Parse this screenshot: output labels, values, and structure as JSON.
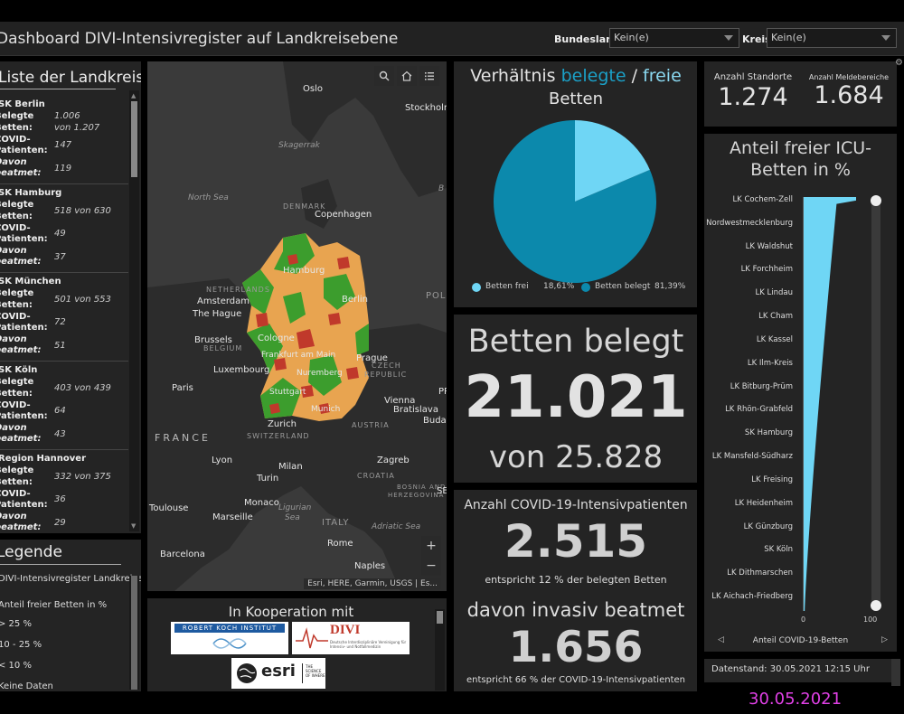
{
  "header": {
    "title": "Dashboard DIVI-Intensivregister auf Landkreisebene",
    "bundesland_label": "Bundesland",
    "bundesland_value": "Kein(e)",
    "kreis_label": "Kreis",
    "kreis_value": "Kein(e)"
  },
  "list": {
    "title": "Liste der Landkreise",
    "label_belegte": "Belegte Betten:",
    "label_covid": "COVID-Patienten:",
    "label_beatmet": "Davon beatmet:",
    "items": [
      {
        "name": "SK Berlin",
        "belegte": "1.006",
        "von": "von 1.207",
        "covid": "147",
        "beatmet": "119"
      },
      {
        "name": "SK Hamburg",
        "belegte": "518 von 630",
        "von": "",
        "covid": "49",
        "beatmet": "37"
      },
      {
        "name": "SK München",
        "belegte": "501 von 553",
        "von": "",
        "covid": "72",
        "beatmet": "51"
      },
      {
        "name": "SK Köln",
        "belegte": "403 von 439",
        "von": "",
        "covid": "64",
        "beatmet": "43"
      },
      {
        "name": "Region Hannover",
        "belegte": "332 von 375",
        "von": "",
        "covid": "36",
        "beatmet": "29"
      }
    ]
  },
  "legend": {
    "title": "Legende",
    "layer": "DIVI-Intensivregister Landkreise",
    "field": "Anteil freier Betten in %",
    "items": [
      "< 10 %",
      "10 - 25 %",
      "> 25 %",
      "Keine Daten"
    ],
    "colors": [
      "#c0392b",
      "#e8a450",
      "#3c9d2d",
      "#777777"
    ]
  },
  "map": {
    "labels": {
      "oslo": "Oslo",
      "stockholm": "Stockholm",
      "skagerrak": "Skagerrak",
      "north_sea": "North Sea",
      "denmark": "DENMARK",
      "copenhagen": "Copenhagen",
      "hamburg": "Hamburg",
      "berlin": "Berlin",
      "netherlands": "NETHERLANDS",
      "amsterdam": "Amsterdam",
      "the_hague": "The Hague",
      "brussels": "Brussels",
      "belgium": "BELGIUM",
      "cologne": "Cologne",
      "frankfurt": "Frankfurt am Main",
      "luxembourg": "Luxembourg",
      "prague": "Prague",
      "czech": "CZECH",
      "republic": "REPUBLIC",
      "paris": "Paris",
      "nuremberg": "Nuremberg",
      "stuttgart": "Stuttgart",
      "munich": "Munich",
      "vienna": "Vienna",
      "bratislava": "Bratislava",
      "austria": "AUSTRIA",
      "budap": "Budap",
      "zurich": "Zurich",
      "switzerland": "SWITZERLAND",
      "france": "FRANCE",
      "lyon": "Lyon",
      "milan": "Milan",
      "turin": "Turin",
      "zagreb": "Zagreb",
      "croatia": "CROATIA",
      "bosnia": "BOSNIA AND",
      "herzegovina": "HERZEGOVINA",
      "monaco": "Monaco",
      "marseille": "Marseille",
      "toulouse": "Toulouse",
      "ligurian": "Ligurian",
      "sea": "Sea",
      "italy": "ITALY",
      "adriatic": "Adriatic Sea",
      "rome": "Rome",
      "barcelona": "Barcelona",
      "naples": "Naples",
      "pol": "POL",
      "pr": "PR",
      "ser": "SER",
      "b": "B"
    },
    "attribution": "Esri, HERE, Garmin, USGS | Es...",
    "zoom_in": "+",
    "zoom_out": "−"
  },
  "cooperation": {
    "title": "In Kooperation mit",
    "rki": "ROBERT KOCH INSTITUT",
    "divi": "DIVI",
    "divi_sub": "Deutsche Interdisziplinäre Vereinigung für Intensiv- und Notfallmedizin",
    "esri": "esri",
    "esri_tag": "THE SCIENCE OF WHERE"
  },
  "pie": {
    "title_prefix": "Verhältnis ",
    "title_belegte": "belegte",
    "title_sep": " / ",
    "title_freie": "freie",
    "title_line2": "Betten",
    "legend_frei_label": "Betten frei",
    "legend_frei_value": "18,61%",
    "legend_belegt_label": "Betten belegt",
    "legend_belegt_value": "81,39%",
    "frei_fraction": 0.1861,
    "color_frei": "#6fd6f5",
    "color_belegt": "#0c89ac"
  },
  "betten": {
    "label": "Betten belegt",
    "value": "21.021",
    "von": "von 25.828"
  },
  "covid": {
    "title": "Anzahl COVID-19-Intensivpatienten",
    "value": "2.515",
    "note": "entspricht 12 % der belegten Betten",
    "invasiv_title": "davon invasiv beatmet",
    "invasiv_value": "1.656",
    "invasiv_note": "entspricht 66 % der COVID-19-Intensivpatienten"
  },
  "standorte": {
    "label1": "Anzahl Standorte",
    "value1": "1.274",
    "label2": "Anzahl Meldebereiche",
    "value2": "1.684"
  },
  "barchart": {
    "title_line1": "Anteil freier ICU-",
    "title_line2": "Betten in %",
    "categories": [
      "LK Cochem-Zell",
      "LK Nordwestmecklenburg",
      "LK Waldshut",
      "LK Forchheim",
      "LK Lindau",
      "LK Cham",
      "LK Kassel",
      "LK Ilm-Kreis",
      "LK Bitburg-Prüm",
      "LK Rhön-Grabfeld",
      "SK Hamburg",
      "LK Mansfeld-Südharz",
      "LK Freising",
      "LK Heidenheim",
      "LK Günzburg",
      "SK Köln",
      "LK Dithmarschen",
      "LK Aichach-Friedberg"
    ],
    "x_ticks": [
      "0",
      "100"
    ],
    "bottom_label": "Anteil COVID-19-Betten",
    "bar_color": "#6fd6f5"
  },
  "datenstand": "Datenstand: 30.05.2021 12:15 Uhr",
  "footer_date": "30.05.2021"
}
